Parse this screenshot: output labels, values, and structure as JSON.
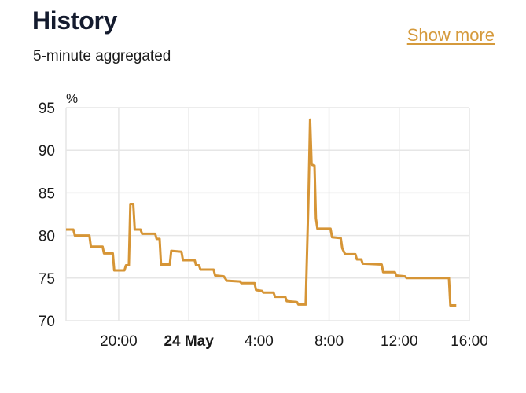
{
  "header": {
    "title": "History",
    "subtitle": "5-minute aggregated",
    "show_more_label": "Show more"
  },
  "colors": {
    "accent": "#d59a3c",
    "series": "#d69536",
    "grid": "#e6e6e6",
    "title": "#141b2e"
  },
  "chart_data": {
    "type": "line",
    "unit_label": "%",
    "ylim": [
      70,
      95
    ],
    "y_ticks": [
      "95",
      "90",
      "85",
      "80",
      "75",
      "70"
    ],
    "xlim": [
      "17:00",
      "16:00"
    ],
    "x_ticks": [
      {
        "label": "20:00",
        "bold": false
      },
      {
        "label": "24 May",
        "bold": true
      },
      {
        "label": "4:00",
        "bold": false
      },
      {
        "label": "8:00",
        "bold": false
      },
      {
        "label": "12:00",
        "bold": false
      },
      {
        "label": "16:00",
        "bold": false
      }
    ],
    "grid": true,
    "legend": "none",
    "series": [
      {
        "points": [
          [
            "17:00",
            80.7
          ],
          [
            "17:25",
            80.7
          ],
          [
            "17:30",
            80.0
          ],
          [
            "18:20",
            80.0
          ],
          [
            "18:25",
            78.7
          ],
          [
            "19:05",
            78.7
          ],
          [
            "19:10",
            77.9
          ],
          [
            "19:40",
            77.9
          ],
          [
            "19:45",
            75.9
          ],
          [
            "20:20",
            75.9
          ],
          [
            "20:25",
            76.5
          ],
          [
            "20:35",
            76.5
          ],
          [
            "20:40",
            83.7
          ],
          [
            "20:50",
            83.7
          ],
          [
            "20:55",
            80.7
          ],
          [
            "21:15",
            80.7
          ],
          [
            "21:20",
            80.2
          ],
          [
            "22:05",
            80.2
          ],
          [
            "22:10",
            79.6
          ],
          [
            "22:20",
            79.6
          ],
          [
            "22:25",
            76.6
          ],
          [
            "22:55",
            76.6
          ],
          [
            "23:00",
            78.2
          ],
          [
            "23:35",
            78.1
          ],
          [
            "23:40",
            77.1
          ],
          [
            "00:20",
            77.1
          ],
          [
            "00:25",
            76.5
          ],
          [
            "00:35",
            76.5
          ],
          [
            "00:40",
            76.0
          ],
          [
            "01:25",
            76.0
          ],
          [
            "01:30",
            75.3
          ],
          [
            "02:00",
            75.2
          ],
          [
            "02:10",
            74.7
          ],
          [
            "02:55",
            74.6
          ],
          [
            "03:00",
            74.4
          ],
          [
            "03:45",
            74.4
          ],
          [
            "03:50",
            73.6
          ],
          [
            "04:10",
            73.5
          ],
          [
            "04:15",
            73.3
          ],
          [
            "04:50",
            73.3
          ],
          [
            "04:55",
            72.8
          ],
          [
            "05:30",
            72.8
          ],
          [
            "05:35",
            72.3
          ],
          [
            "06:10",
            72.2
          ],
          [
            "06:15",
            71.9
          ],
          [
            "06:40",
            71.9
          ],
          [
            "06:50",
            85.0
          ],
          [
            "06:55",
            93.6
          ],
          [
            "07:00",
            88.3
          ],
          [
            "07:10",
            88.2
          ],
          [
            "07:15",
            82.0
          ],
          [
            "07:20",
            80.8
          ],
          [
            "08:05",
            80.8
          ],
          [
            "08:10",
            79.8
          ],
          [
            "08:40",
            79.7
          ],
          [
            "08:45",
            78.5
          ],
          [
            "08:55",
            77.8
          ],
          [
            "09:30",
            77.8
          ],
          [
            "09:35",
            77.2
          ],
          [
            "09:50",
            77.2
          ],
          [
            "09:55",
            76.7
          ],
          [
            "11:00",
            76.6
          ],
          [
            "11:05",
            75.7
          ],
          [
            "11:45",
            75.7
          ],
          [
            "11:50",
            75.3
          ],
          [
            "12:20",
            75.2
          ],
          [
            "12:25",
            75.0
          ],
          [
            "14:50",
            75.0
          ],
          [
            "14:55",
            71.8
          ],
          [
            "15:15",
            71.8
          ]
        ]
      }
    ]
  }
}
